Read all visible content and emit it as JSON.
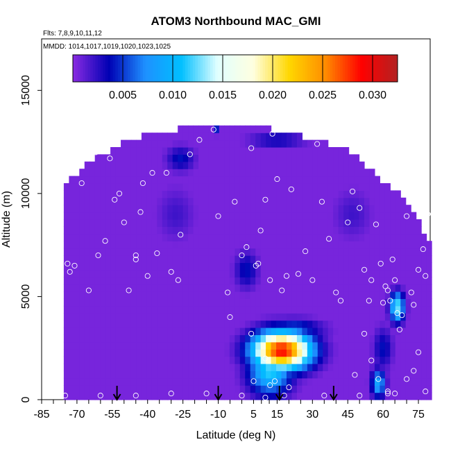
{
  "chart_data": {
    "type": "heatmap",
    "title": "ATOM3 Northbound MAC_GMI",
    "flights_label": "Flts: 7,8,9,10,11,12",
    "dates_label": "MMDD: 1014,1017,1019,1020,1023,1025",
    "xlabel": "Latitude (deg N)",
    "ylabel": "Altitude (m)",
    "xlim": [
      -85,
      80
    ],
    "ylim": [
      0,
      17500
    ],
    "x_ticks": [
      -85,
      -70,
      -55,
      -40,
      -25,
      -10,
      5,
      15,
      30,
      45,
      60,
      75
    ],
    "x_tick_labels": [
      "-85",
      "-70",
      "-55",
      "-40",
      "-25",
      "-10",
      "5",
      "15",
      "30",
      "45",
      "60",
      "75"
    ],
    "y_ticks": [
      0,
      5000,
      10000,
      15000
    ],
    "y_tick_labels": [
      "0",
      "5000",
      "10000",
      "15000"
    ],
    "colorbar": {
      "range": [
        0,
        0.0325
      ],
      "ticks": [
        0.005,
        0.01,
        0.015,
        0.02,
        0.025,
        0.03
      ],
      "tick_labels": [
        "0.005",
        "0.010",
        "0.015",
        "0.020",
        "0.025",
        "0.030"
      ],
      "colors": [
        "#8a2be2",
        "#0000b4",
        "#1e90ff",
        "#00bfff",
        "#e0ffff",
        "#ffffe0",
        "#ffd700",
        "#ff8c00",
        "#ff0000",
        "#b22222"
      ]
    },
    "domain_top": [
      [
        -76,
        10300
      ],
      [
        -70,
        10800
      ],
      [
        -64,
        11400
      ],
      [
        -58,
        11800
      ],
      [
        -50,
        12300
      ],
      [
        -40,
        12700
      ],
      [
        -30,
        12900
      ],
      [
        -25,
        13000
      ],
      [
        10,
        13000
      ],
      [
        25,
        12600
      ],
      [
        35,
        12300
      ],
      [
        45,
        12000
      ],
      [
        55,
        11000
      ],
      [
        63,
        10100
      ],
      [
        68,
        9700
      ],
      [
        75,
        8500
      ],
      [
        80,
        7500
      ]
    ],
    "blobs": [
      {
        "lat": 17,
        "alt": 2400,
        "slat": 12,
        "salt": 900,
        "value": 0.029
      },
      {
        "lat": 12,
        "alt": 1500,
        "slat": 9,
        "salt": 1200,
        "value": 0.012
      },
      {
        "lat": 22,
        "alt": 3400,
        "slat": 12,
        "salt": 500,
        "value": 0.006
      },
      {
        "lat": 66,
        "alt": 4500,
        "slat": 3,
        "salt": 700,
        "value": 0.013
      },
      {
        "lat": 58,
        "alt": 800,
        "slat": 3,
        "salt": 700,
        "value": 0.009
      },
      {
        "lat": 60,
        "alt": 2500,
        "slat": 4,
        "salt": 1000,
        "value": 0.004
      },
      {
        "lat": 2,
        "alt": 6300,
        "slat": 5,
        "salt": 900,
        "value": 0.004
      },
      {
        "lat": -26,
        "alt": 11700,
        "slat": 6,
        "salt": 600,
        "value": 0.004
      },
      {
        "lat": -28,
        "alt": 9000,
        "slat": 8,
        "salt": 1300,
        "value": 0.002
      },
      {
        "lat": 15,
        "alt": 12600,
        "slat": 12,
        "salt": 300,
        "value": 0.004
      },
      {
        "lat": -11,
        "alt": 13200,
        "slat": 1,
        "salt": 300,
        "value": 0.005
      },
      {
        "lat": 47,
        "alt": 9000,
        "slat": 8,
        "salt": 1200,
        "value": 0.002
      }
    ],
    "sample_points": [
      [
        -79,
        7800
      ],
      [
        -77,
        5200
      ],
      [
        -74,
        6600
      ],
      [
        -73,
        6200
      ],
      [
        -71,
        6500
      ],
      [
        -65,
        5300
      ],
      [
        -61,
        7000
      ],
      [
        -58,
        7700
      ],
      [
        -54,
        9700
      ],
      [
        -52,
        10000
      ],
      [
        -48,
        5300
      ],
      [
        -45,
        7000
      ],
      [
        -42,
        10500
      ],
      [
        -40,
        6000
      ],
      [
        -38,
        11000
      ],
      [
        -36,
        7100
      ],
      [
        -32,
        11000
      ],
      [
        -30,
        6200
      ],
      [
        -27,
        5800
      ],
      [
        -26,
        8000
      ],
      [
        -22,
        11900
      ],
      [
        -18,
        12600
      ],
      [
        -12,
        13100
      ],
      [
        -10,
        8900
      ],
      [
        -6,
        5200
      ],
      [
        -3,
        9600
      ],
      [
        0,
        7000
      ],
      [
        2,
        7400
      ],
      [
        4,
        12200
      ],
      [
        6,
        6500
      ],
      [
        7,
        6600
      ],
      [
        8,
        8200
      ],
      [
        10,
        9700
      ],
      [
        12,
        5800
      ],
      [
        13,
        12900
      ],
      [
        15,
        10700
      ],
      [
        17,
        5300
      ],
      [
        19,
        6000
      ],
      [
        21,
        10200
      ],
      [
        24,
        6100
      ],
      [
        27,
        7200
      ],
      [
        30,
        5800
      ],
      [
        32,
        12400
      ],
      [
        34,
        9600
      ],
      [
        37,
        7800
      ],
      [
        40,
        5200
      ],
      [
        42,
        4800
      ],
      [
        45,
        8600
      ],
      [
        47,
        10100
      ],
      [
        49,
        12100
      ],
      [
        50,
        9300
      ],
      [
        52,
        6300
      ],
      [
        54,
        4800
      ],
      [
        55,
        5800
      ],
      [
        57,
        8500
      ],
      [
        59,
        6600
      ],
      [
        60,
        4700
      ],
      [
        61,
        5500
      ],
      [
        62,
        5300
      ],
      [
        63,
        4800
      ],
      [
        64,
        6800
      ],
      [
        65,
        5800
      ],
      [
        66,
        4200
      ],
      [
        67,
        3400
      ],
      [
        68,
        4100
      ],
      [
        70,
        8900
      ],
      [
        72,
        5200
      ],
      [
        73,
        4600
      ],
      [
        75,
        6300
      ],
      [
        77,
        7300
      ],
      [
        78,
        6000
      ],
      [
        79,
        9000
      ],
      [
        -68,
        10500
      ],
      [
        -45,
        6800
      ],
      [
        -5,
        4000
      ],
      [
        4,
        3200
      ],
      [
        10,
        2000
      ],
      [
        12,
        700
      ],
      [
        14,
        900
      ],
      [
        20,
        600
      ],
      [
        10,
        100
      ],
      [
        -75,
        200
      ],
      [
        -60,
        200
      ],
      [
        -45,
        200
      ],
      [
        -30,
        300
      ],
      [
        -15,
        300
      ],
      [
        0,
        200
      ],
      [
        18,
        200
      ],
      [
        35,
        200
      ],
      [
        50,
        200
      ],
      [
        65,
        300
      ],
      [
        78,
        400
      ],
      [
        52,
        3200
      ],
      [
        48,
        1200
      ],
      [
        55,
        1900
      ],
      [
        58,
        1000
      ],
      [
        62,
        300
      ],
      [
        70,
        1000
      ],
      [
        73,
        1400
      ],
      [
        75,
        2300
      ],
      [
        -62,
        12000
      ],
      [
        -56,
        11700
      ],
      [
        -50,
        8600
      ],
      [
        -43,
        9100
      ],
      [
        62,
        400
      ],
      [
        5,
        900
      ]
    ],
    "arrows_lat": [
      -53,
      -10,
      16,
      39
    ]
  }
}
